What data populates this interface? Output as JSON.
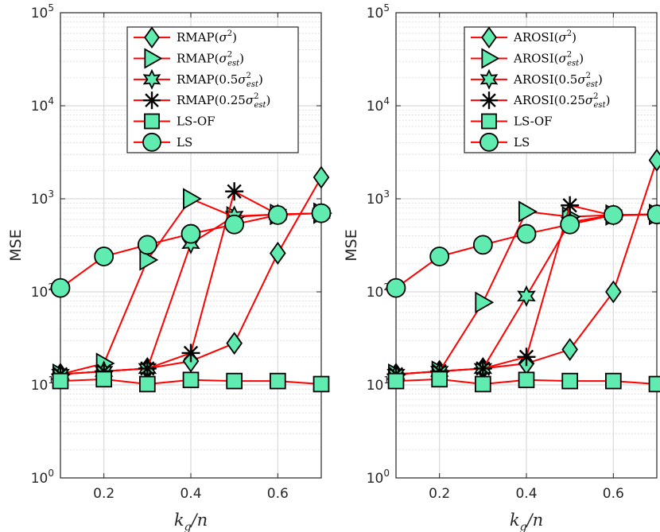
{
  "chart_data": [
    {
      "type": "line",
      "title": "",
      "xlabel_main": "k",
      "xlabel_sub": "g",
      "xlabel_tail": "/n",
      "ylabel": "MSE",
      "yscale": "log",
      "xlim": [
        0.1,
        0.7
      ],
      "ylim": [
        1,
        100000
      ],
      "grid": true,
      "legend_position": "top",
      "x": [
        0.1,
        0.2,
        0.3,
        0.4,
        0.5,
        0.6,
        0.7
      ],
      "xtick_labels": [
        "0.2",
        "0.4",
        "0.6"
      ],
      "xtick_values": [
        0.2,
        0.4,
        0.6
      ],
      "ytick_base": "10",
      "ytick_exponents": [
        "0",
        "1",
        "2",
        "3",
        "4",
        "5"
      ],
      "series": [
        {
          "name": "RMAP(σ²)",
          "legend": {
            "pre": "RMAP(",
            "sym": "σ",
            "sup": "2",
            "sub": "",
            "post": ")"
          },
          "marker": "diamond",
          "values": [
            13,
            14,
            15,
            18,
            28,
            260,
            1700
          ]
        },
        {
          "name": "RMAP(σ²est)",
          "legend": {
            "pre": "RMAP(",
            "sym": "σ",
            "sup": "2",
            "sub": "est",
            "post": ")"
          },
          "marker": "triangle-right",
          "values": [
            13,
            17,
            220,
            1000,
            640,
            680,
            700
          ]
        },
        {
          "name": "RMAP(0.5σ²est)",
          "legend": {
            "pre": "RMAP(0.5",
            "sym": "σ",
            "sup": "2",
            "sub": "est",
            "post": ")"
          },
          "marker": "hexagram",
          "values": [
            13,
            14,
            15,
            330,
            650,
            680,
            700
          ]
        },
        {
          "name": "RMAP(0.25σ²est)",
          "legend": {
            "pre": "RMAP(0.25",
            "sym": "σ",
            "sup": "2",
            "sub": "est",
            "post": ")"
          },
          "marker": "asterisk",
          "values": [
            13,
            14,
            15,
            22,
            1200,
            680,
            700
          ]
        },
        {
          "name": "LS-OF",
          "legend": {
            "pre": "LS-OF",
            "sym": "",
            "sup": "",
            "sub": "",
            "post": ""
          },
          "marker": "square",
          "values": [
            11,
            11.5,
            10.2,
            11.3,
            11,
            11,
            10.2
          ]
        },
        {
          "name": "LS",
          "legend": {
            "pre": "LS",
            "sym": "",
            "sup": "",
            "sub": "",
            "post": ""
          },
          "marker": "circle",
          "values": [
            110,
            240,
            320,
            420,
            530,
            670,
            700
          ]
        }
      ]
    },
    {
      "type": "line",
      "title": "",
      "xlabel_main": "k",
      "xlabel_sub": "g",
      "xlabel_tail": "/n",
      "ylabel": "MSE",
      "yscale": "log",
      "xlim": [
        0.1,
        0.7
      ],
      "ylim": [
        1,
        100000
      ],
      "grid": true,
      "legend_position": "top",
      "x": [
        0.1,
        0.2,
        0.3,
        0.4,
        0.5,
        0.6,
        0.7
      ],
      "xtick_labels": [
        "0.2",
        "0.4",
        "0.6"
      ],
      "xtick_values": [
        0.2,
        0.4,
        0.6
      ],
      "ytick_base": "10",
      "ytick_exponents": [
        "0",
        "1",
        "2",
        "3",
        "4",
        "5"
      ],
      "series": [
        {
          "name": "AROSI(σ²)",
          "legend": {
            "pre": "AROSI(",
            "sym": "σ",
            "sup": "2",
            "sub": "",
            "post": ")"
          },
          "marker": "diamond",
          "values": [
            13,
            14,
            15,
            17,
            24,
            100,
            2600
          ]
        },
        {
          "name": "AROSI(σ²est)",
          "legend": {
            "pre": "AROSI(",
            "sym": "σ",
            "sup": "2",
            "sub": "est",
            "post": ")"
          },
          "marker": "triangle-right",
          "values": [
            13,
            14,
            77,
            730,
            640,
            670,
            680
          ]
        },
        {
          "name": "AROSI(0.5σ²est)",
          "legend": {
            "pre": "AROSI(0.5",
            "sym": "σ",
            "sup": "2",
            "sub": "est",
            "post": ")"
          },
          "marker": "hexagram",
          "values": [
            13,
            14,
            15,
            90,
            560,
            670,
            680
          ]
        },
        {
          "name": "AROSI(0.25σ²est)",
          "legend": {
            "pre": "AROSI(0.25",
            "sym": "σ",
            "sup": "2",
            "sub": "est",
            "post": ")"
          },
          "marker": "asterisk",
          "values": [
            13,
            14,
            15,
            20,
            850,
            660,
            680
          ]
        },
        {
          "name": "LS-OF",
          "legend": {
            "pre": "LS-OF",
            "sym": "",
            "sup": "",
            "sub": "",
            "post": ""
          },
          "marker": "square",
          "values": [
            11,
            11.5,
            10.2,
            11.3,
            11,
            11,
            10.2
          ]
        },
        {
          "name": "LS",
          "legend": {
            "pre": "LS",
            "sym": "",
            "sup": "",
            "sub": "",
            "post": ""
          },
          "marker": "circle",
          "values": [
            110,
            240,
            320,
            420,
            530,
            670,
            680
          ]
        }
      ]
    }
  ],
  "colors": {
    "line": "#ff0000",
    "marker_fill": "#60ebb0",
    "marker_edge": "#000000"
  }
}
